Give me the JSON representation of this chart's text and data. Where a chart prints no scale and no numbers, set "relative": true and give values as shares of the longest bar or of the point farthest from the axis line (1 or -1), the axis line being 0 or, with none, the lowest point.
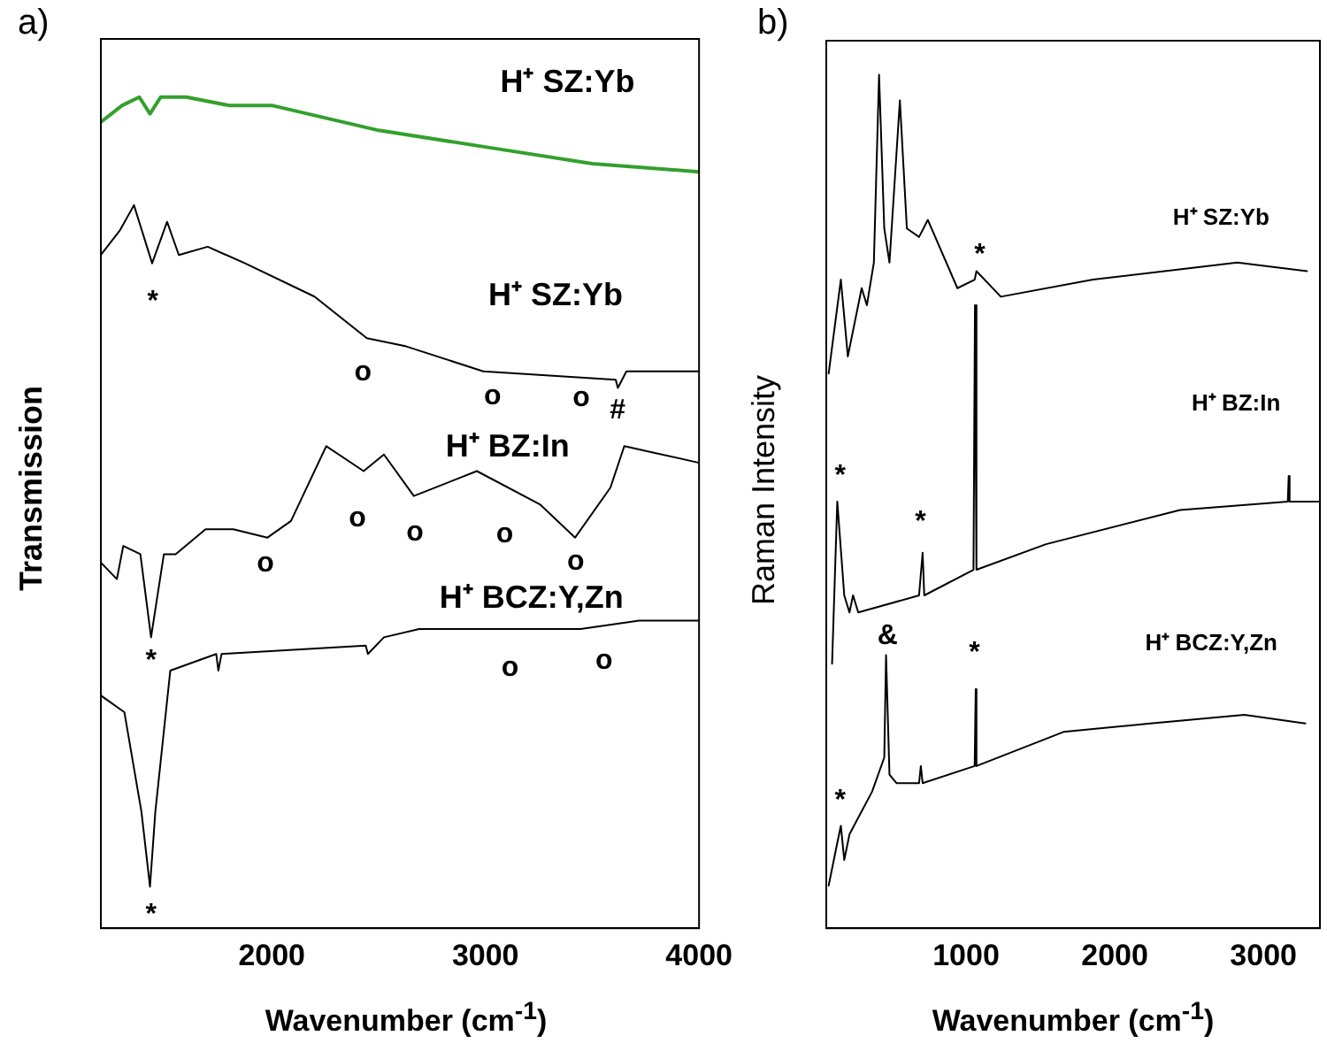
{
  "chart_data": [
    {
      "type": "line",
      "title": "a)",
      "xlabel": "Wavenumber (cm$^{-1}$)",
      "ylabel": "Transmission",
      "relative": true,
      "xlim": [
        1200,
        4000
      ],
      "xticks": [
        2000,
        3000,
        4000
      ],
      "grid": false,
      "legend": false,
      "marker": "none",
      "series": [
        {
          "name": "H⁺ SZ:Yb",
          "color": "#33a02c",
          "x": [
            1200,
            1300,
            1380,
            1430,
            1480,
            1600,
            1800,
            2000,
            2500,
            3000,
            3500,
            4000
          ],
          "values": [
            0.97,
            0.99,
            1.0,
            0.98,
            1.0,
            1.0,
            0.99,
            0.99,
            0.96,
            0.94,
            0.92,
            0.91
          ]
        },
        {
          "name": "H⁺ SZ:Yb",
          "color": "#000000",
          "x": [
            1200,
            1290,
            1355,
            1440,
            1510,
            1565,
            1700,
            1875,
            2200,
            2445,
            2630,
            2990,
            3610,
            3620,
            3660,
            4000
          ],
          "values": [
            0.81,
            0.84,
            0.87,
            0.8,
            0.85,
            0.81,
            0.82,
            0.8,
            0.76,
            0.71,
            0.7,
            0.67,
            0.66,
            0.65,
            0.67,
            0.67
          ]
        },
        {
          "name": "H⁺ BZ:In",
          "color": "#000000",
          "x": [
            1200,
            1275,
            1305,
            1385,
            1435,
            1495,
            1550,
            1690,
            1820,
            1980,
            2090,
            2255,
            2430,
            2525,
            2665,
            2960,
            3255,
            3420,
            3585,
            3650,
            4000
          ],
          "values": [
            0.44,
            0.42,
            0.46,
            0.45,
            0.35,
            0.45,
            0.45,
            0.48,
            0.48,
            0.47,
            0.49,
            0.58,
            0.55,
            0.57,
            0.52,
            0.55,
            0.51,
            0.47,
            0.53,
            0.58,
            0.56
          ]
        },
        {
          "name": "H⁺ BCZ:Y,Zn",
          "color": "#000000",
          "x": [
            1200,
            1310,
            1390,
            1430,
            1455,
            1525,
            1740,
            1750,
            1765,
            2440,
            2450,
            2525,
            2690,
            3445,
            3720,
            4000
          ],
          "values": [
            0.28,
            0.26,
            0.14,
            0.05,
            0.14,
            0.31,
            0.33,
            0.31,
            0.33,
            0.34,
            0.33,
            0.35,
            0.36,
            0.36,
            0.37,
            0.37
          ]
        }
      ],
      "annotations": [
        "*",
        "o",
        "o",
        "o",
        "#",
        "o",
        "o",
        "o",
        "o",
        "o",
        "*",
        "o",
        "o",
        "*"
      ]
    },
    {
      "type": "line",
      "title": "b)",
      "xlabel": "Wavenumber (cm$^{-1}$)",
      "ylabel": "Raman Intensity",
      "relative": true,
      "xlim": [
        60,
        3380
      ],
      "xticks": [
        1000,
        2000,
        3000
      ],
      "grid": false,
      "legend": false,
      "marker": "none",
      "series": [
        {
          "name": "H⁺ SZ:Yb",
          "color": "#000000",
          "x": [
            76,
            158,
            205,
            298,
            333,
            380,
            415,
            450,
            485,
            555,
            602,
            684,
            743,
            942,
            1058,
            1070,
            1234,
            1854,
            2825,
            3293
          ],
          "values": [
            0.65,
            0.76,
            0.67,
            0.75,
            0.73,
            0.78,
            1.0,
            0.82,
            0.78,
            0.97,
            0.82,
            0.81,
            0.83,
            0.75,
            0.76,
            0.77,
            0.74,
            0.76,
            0.78,
            0.77
          ]
        },
        {
          "name": "H⁺ BZ:In",
          "color": "#000000",
          "x": [
            99,
            134,
            181,
            216,
            240,
            275,
            684,
            708,
            719,
            1050,
            1060,
            1070,
            1538,
            2439,
            3164,
            3170,
            3176,
            3375
          ],
          "values": [
            0.31,
            0.5,
            0.39,
            0.37,
            0.39,
            0.37,
            0.39,
            0.44,
            0.39,
            0.42,
            0.73,
            0.42,
            0.45,
            0.49,
            0.5,
            0.53,
            0.5,
            0.5
          ]
        },
        {
          "name": "H⁺ BCZ:Y,Zn",
          "color": "#000000",
          "x": [
            76,
            134,
            158,
            181,
            216,
            368,
            450,
            462,
            485,
            532,
            684,
            696,
            708,
            1058,
            1065,
            1070,
            1655,
            2240,
            2872,
            3282
          ],
          "values": [
            0.05,
            0.1,
            0.12,
            0.08,
            0.11,
            0.16,
            0.2,
            0.32,
            0.18,
            0.17,
            0.17,
            0.19,
            0.17,
            0.19,
            0.28,
            0.19,
            0.23,
            0.24,
            0.25,
            0.24
          ]
        }
      ],
      "annotations": [
        "*",
        "*",
        "*",
        "&",
        "*",
        "*"
      ]
    }
  ]
}
